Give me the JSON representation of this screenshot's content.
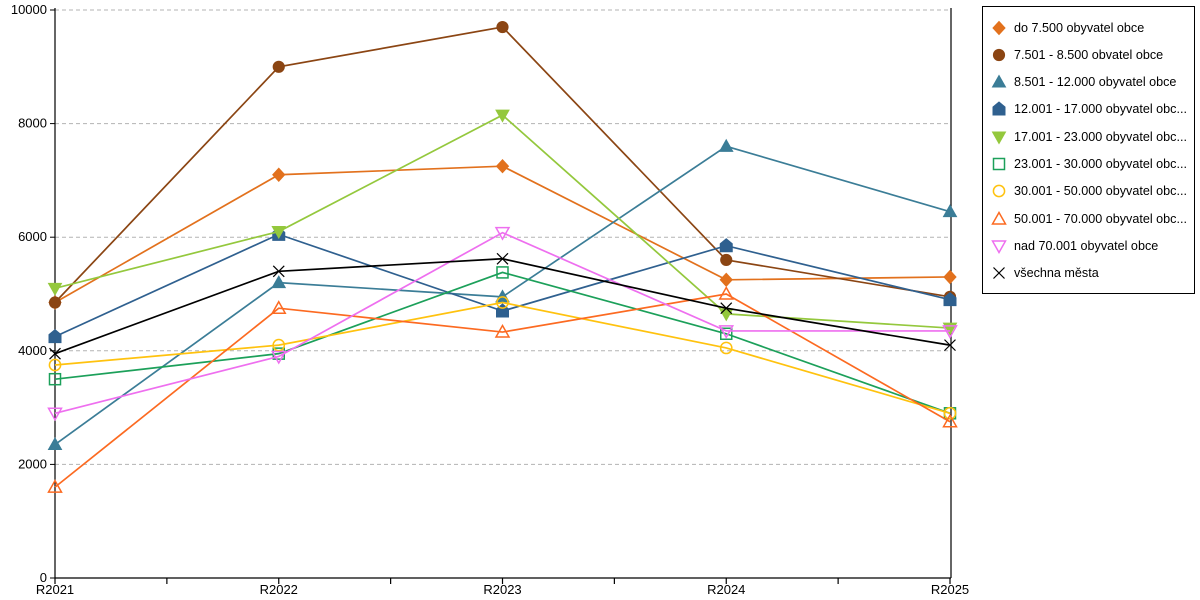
{
  "chart_data": {
    "type": "line",
    "title": "",
    "xlabel": "",
    "ylabel": "",
    "categories": [
      "R2021",
      "R2022",
      "R2023",
      "R2024",
      "R2025"
    ],
    "y_ticks": [
      0,
      2000,
      4000,
      6000,
      8000,
      10000
    ],
    "ylim": [
      0,
      10000
    ],
    "grid": "horizontal-dashed",
    "grid_color": "#b3b3b3",
    "axis_color": "#000000",
    "legend_position": "outside-top-right",
    "series": [
      {
        "name": "do 7.500 obyvatel obce",
        "color": "#e2711d",
        "marker": "diamond",
        "fill": "filled",
        "values": [
          4850,
          7100,
          7250,
          5250,
          5300
        ]
      },
      {
        "name": "7.501 - 8.500 obvatel obce",
        "color": "#8b4513",
        "marker": "circle",
        "fill": "filled",
        "values": [
          4850,
          9000,
          9700,
          5600,
          4950
        ]
      },
      {
        "name": "8.501 - 12.000 obyvatel obce",
        "color": "#3b7d97",
        "marker": "triangle-up",
        "fill": "filled",
        "values": [
          2350,
          5200,
          4950,
          7600,
          6450
        ]
      },
      {
        "name": "12.001 - 17.000 obyvatel obc...",
        "color": "#2f608f",
        "marker": "pentagon",
        "fill": "filled",
        "values": [
          4250,
          6050,
          4700,
          5850,
          4900
        ]
      },
      {
        "name": "17.001 - 23.000 obyvatel obc...",
        "color": "#94c83d",
        "marker": "triangle-down",
        "fill": "filled",
        "values": [
          5100,
          6100,
          8150,
          4650,
          4400
        ]
      },
      {
        "name": "23.001 - 30.000 obyvatel obc...",
        "color": "#1ca05a",
        "marker": "square",
        "fill": "open",
        "values": [
          3500,
          3950,
          5380,
          4300,
          2900
        ]
      },
      {
        "name": "30.001 - 50.000 obyvatel obc...",
        "color": "#ffc20e",
        "marker": "circle",
        "fill": "open",
        "values": [
          3750,
          4100,
          4850,
          4050,
          2900
        ]
      },
      {
        "name": "50.001 - 70.000 obyvatel obc...",
        "color": "#fc6a21",
        "marker": "triangle-up",
        "fill": "open",
        "values": [
          1600,
          4750,
          4330,
          5000,
          2750
        ]
      },
      {
        "name": "nad 70.001 obyvatel obce",
        "color": "#ee6fef",
        "marker": "triangle-down",
        "fill": "open",
        "values": [
          2900,
          3900,
          6080,
          4350,
          4350
        ]
      },
      {
        "name": "všechna města",
        "color": "#000000",
        "marker": "x-cross",
        "fill": "open",
        "values": [
          3950,
          5400,
          5620,
          4750,
          4100
        ]
      }
    ]
  }
}
